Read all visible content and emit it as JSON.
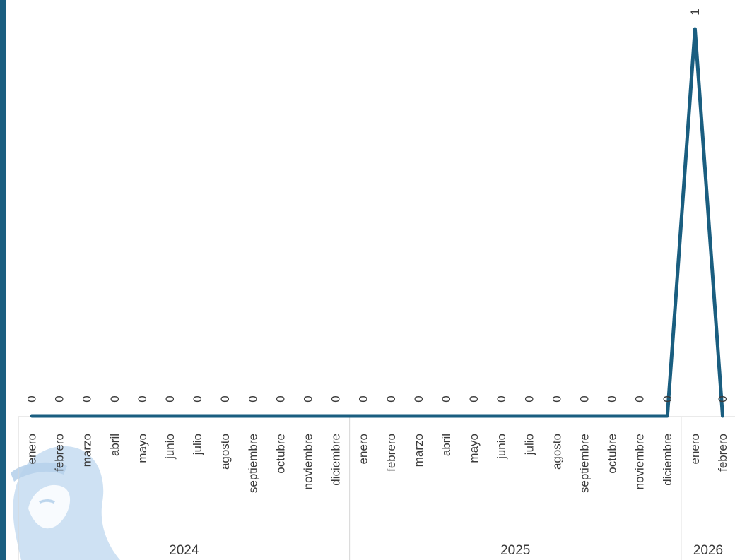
{
  "chart_data": {
    "type": "line",
    "title": "",
    "xlabel": "",
    "ylabel": "",
    "ylim": [
      0,
      1
    ],
    "grid": false,
    "legend": "none",
    "line_color": "#1a5e80",
    "x": [
      "enero",
      "febrero",
      "marzo",
      "abril",
      "mayo",
      "junio",
      "julio",
      "agosto",
      "septiembre",
      "octubre",
      "noviembre",
      "diciembre",
      "enero",
      "febrero",
      "marzo",
      "abril",
      "mayo",
      "junio",
      "julio",
      "agosto",
      "septiembre",
      "octubre",
      "noviembre",
      "diciembre",
      "enero",
      "febrero"
    ],
    "years": [
      {
        "label": "2024",
        "count": 12
      },
      {
        "label": "2025",
        "count": 12
      },
      {
        "label": "2026",
        "count": 2
      }
    ],
    "values": [
      0,
      0,
      0,
      0,
      0,
      0,
      0,
      0,
      0,
      0,
      0,
      0,
      0,
      0,
      0,
      0,
      0,
      0,
      0,
      0,
      0,
      0,
      0,
      0,
      1,
      0
    ],
    "data_labels": [
      "0",
      "0",
      "0",
      "0",
      "0",
      "0",
      "0",
      "0",
      "0",
      "0",
      "0",
      "0",
      "0",
      "0",
      "0",
      "0",
      "0",
      "0",
      "0",
      "0",
      "0",
      "0",
      "0",
      "0",
      "1",
      "0"
    ]
  },
  "decor": {
    "left_bar_color": "#1a5e80",
    "watermark_icon": "woman-face-watermark-icon"
  }
}
